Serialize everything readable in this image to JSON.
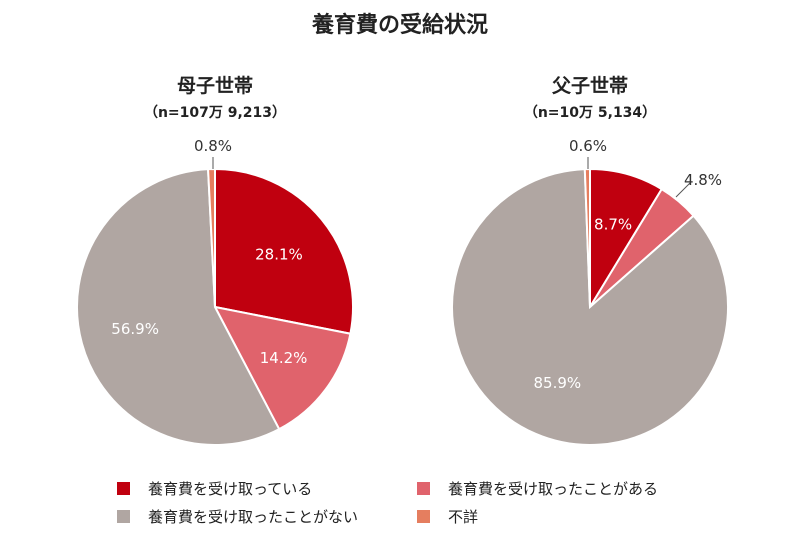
{
  "title": "養育費の受給状況",
  "colors": {
    "receiving": "#c0000f",
    "received_before": "#e0636c",
    "never": "#b0a6a2",
    "unknown": "#e57e5f"
  },
  "chart_data": [
    {
      "type": "pie",
      "title": "母子世帯",
      "subtitle": "（n=107万 9,213）",
      "categories": [
        "養育費を受け取っている",
        "養育費を受け取ったことがある",
        "養育費を受け取ったことがない",
        "不詳"
      ],
      "values": [
        28.1,
        14.2,
        56.9,
        0.8
      ],
      "labels": [
        "28.1%",
        "14.2%",
        "56.9%",
        "0.8%"
      ],
      "label_inside": [
        true,
        true,
        true,
        false
      ]
    },
    {
      "type": "pie",
      "title": "父子世帯",
      "subtitle": "（n=10万 5,134）",
      "categories": [
        "養育費を受け取っている",
        "養育費を受け取ったことがある",
        "養育費を受け取ったことがない",
        "不詳"
      ],
      "values": [
        8.7,
        4.8,
        85.9,
        0.6
      ],
      "labels": [
        "8.7%",
        "4.8%",
        "85.9%",
        "0.6%"
      ],
      "label_inside": [
        true,
        false,
        true,
        false
      ]
    }
  ],
  "legend": [
    {
      "label": "養育費を受け取っている",
      "color": "#c0000f"
    },
    {
      "label": "養育費を受け取ったことがある",
      "color": "#e0636c"
    },
    {
      "label": "養育費を受け取ったことがない",
      "color": "#b0a6a2"
    },
    {
      "label": "不詳",
      "color": "#e57e5f"
    }
  ]
}
